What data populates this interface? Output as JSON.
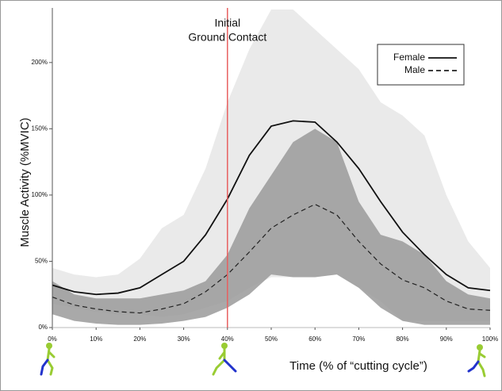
{
  "chart_data": {
    "type": "line",
    "y_label": "Muscle Activity (%MVIC)",
    "x_label": "Time (% of “cutting cycle”)",
    "x": [
      0,
      5,
      10,
      15,
      20,
      25,
      30,
      35,
      40,
      45,
      50,
      55,
      60,
      65,
      70,
      75,
      80,
      85,
      90,
      95,
      100
    ],
    "series": [
      {
        "name": "Female",
        "color": "#111111",
        "dash": "none",
        "values": [
          32,
          27,
          25,
          26,
          30,
          40,
          50,
          70,
          97,
          130,
          152,
          156,
          155,
          140,
          120,
          95,
          72,
          55,
          40,
          30,
          28
        ],
        "band_upper": [
          45,
          40,
          38,
          40,
          52,
          75,
          85,
          120,
          170,
          210,
          240,
          240,
          225,
          210,
          195,
          170,
          160,
          145,
          100,
          65,
          45
        ],
        "band_lower": [
          18,
          15,
          12,
          10,
          10,
          8,
          10,
          15,
          20,
          30,
          38,
          38,
          38,
          40,
          30,
          20,
          5,
          5,
          5,
          5,
          5
        ],
        "band_color": "#e6e6e6"
      },
      {
        "name": "Male",
        "color": "#222222",
        "dash": "6 4",
        "values": [
          23,
          17,
          14,
          12,
          11,
          14,
          18,
          27,
          40,
          57,
          75,
          85,
          93,
          85,
          65,
          48,
          36,
          30,
          20,
          14,
          13
        ],
        "band_upper": [
          35,
          25,
          22,
          22,
          22,
          25,
          28,
          35,
          55,
          90,
          115,
          140,
          150,
          140,
          95,
          70,
          65,
          55,
          35,
          25,
          22
        ],
        "band_lower": [
          10,
          5,
          3,
          2,
          2,
          3,
          5,
          8,
          15,
          25,
          40,
          38,
          38,
          40,
          30,
          15,
          5,
          2,
          2,
          2,
          2
        ],
        "band_color": "#9a9a9a"
      }
    ],
    "xlim": [
      0,
      100
    ],
    "ylim": [
      0,
      240
    ],
    "xticks": [
      {
        "value": 0,
        "label": "0%"
      },
      {
        "value": 10,
        "label": "10%"
      },
      {
        "value": 20,
        "label": "20%"
      },
      {
        "value": 30,
        "label": "30%"
      },
      {
        "value": 40,
        "label": "40%"
      },
      {
        "value": 50,
        "label": "50%"
      },
      {
        "value": 60,
        "label": "60%"
      },
      {
        "value": 70,
        "label": "70%"
      },
      {
        "value": 80,
        "label": "80%"
      },
      {
        "value": 90,
        "label": "90%"
      },
      {
        "value": 100,
        "label": "100%"
      }
    ],
    "yticks": [
      {
        "value": 0,
        "label": "0%"
      },
      {
        "value": 50,
        "label": "50%"
      },
      {
        "value": 100,
        "label": "100%"
      },
      {
        "value": 150,
        "label": "150%"
      },
      {
        "value": 200,
        "label": "200%"
      }
    ],
    "annotation": {
      "x": 40,
      "lines": [
        "Initial",
        "Ground Contact"
      ],
      "color": "#e86060"
    },
    "legend": "upper right"
  }
}
